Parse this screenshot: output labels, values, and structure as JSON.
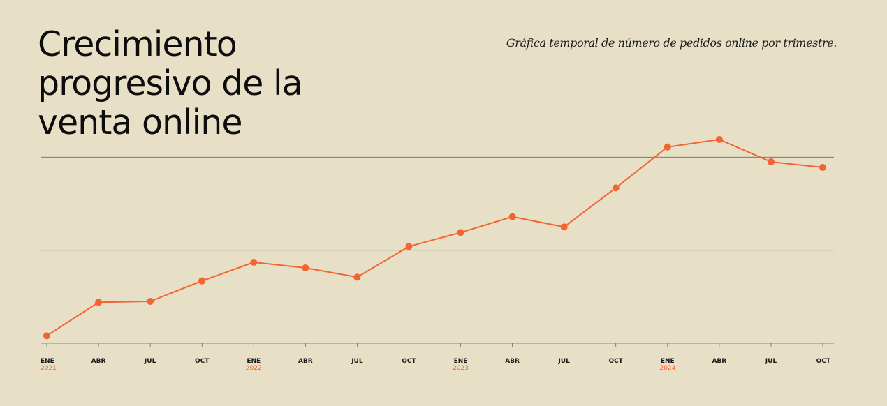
{
  "header": {
    "title_lines": [
      "Crecimiento",
      "progresivo de la",
      "venta online"
    ],
    "subtitle": "Gráfica temporal de número de pedidos online por trimestre."
  },
  "colors": {
    "background": "#e8dfc7",
    "line": "#f26430",
    "grid": "#6e6a60",
    "year_label": "#ff5c26"
  },
  "chart_data": {
    "type": "line",
    "title": "Crecimiento progresivo de la venta online",
    "subtitle": "Gráfica temporal de número de pedidos online por trimestre.",
    "xlabel": "",
    "ylabel": "",
    "x": [
      "ENE 2021",
      "ABR 2021",
      "JUL 2021",
      "OCT 2021",
      "ENE 2022",
      "ABR 2022",
      "JUL 2022",
      "OCT 2022",
      "ENE 2023",
      "ABR 2023",
      "JUL 2023",
      "OCT 2023",
      "ENE 2024",
      "ABR 2024",
      "JUL 2024",
      "OCT 2024"
    ],
    "tick_labels": [
      {
        "month": "ENE",
        "year": "2021"
      },
      {
        "month": "ABR",
        "year": ""
      },
      {
        "month": "JUL",
        "year": ""
      },
      {
        "month": "OCT",
        "year": ""
      },
      {
        "month": "ENE",
        "year": "2022"
      },
      {
        "month": "ABR",
        "year": ""
      },
      {
        "month": "JUL",
        "year": ""
      },
      {
        "month": "OCT",
        "year": ""
      },
      {
        "month": "ENE",
        "year": "2023"
      },
      {
        "month": "ABR",
        "year": ""
      },
      {
        "month": "JUL",
        "year": ""
      },
      {
        "month": "OCT",
        "year": ""
      },
      {
        "month": "ENE",
        "year": "2024"
      },
      {
        "month": "ABR",
        "year": ""
      },
      {
        "month": "JUL",
        "year": ""
      },
      {
        "month": "OCT",
        "year": ""
      }
    ],
    "series": [
      {
        "values": [
          4,
          22,
          22.5,
          33.5,
          43.5,
          40.5,
          35.5,
          52,
          59.5,
          68,
          62.5,
          83.5,
          105.5,
          109.5,
          97.5,
          94.5
        ]
      }
    ],
    "ylim": [
      0,
      114
    ],
    "gridlines": [
      50,
      100
    ],
    "grid": true,
    "legend": "none"
  }
}
